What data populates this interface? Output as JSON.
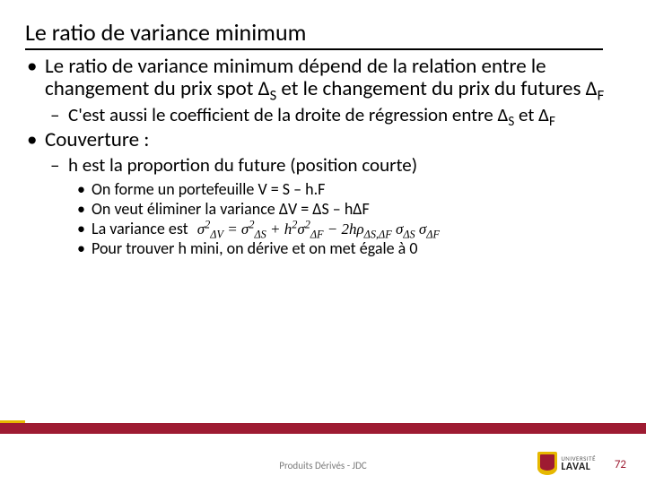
{
  "title": "Le ratio de variance minimum",
  "b1": "Le ratio de variance minimum dépend de la relation entre le changement du prix spot Δ",
  "b1_s1": "S",
  "b1_mid": " et le changement du prix du futures Δ",
  "b1_s2": "F",
  "b1a": "C'est aussi le coefficient de la droite de régression entre Δ",
  "b1a_s1": "S",
  "b1a_mid": " et Δ",
  "b1a_s2": "F",
  "b2": "Couverture :",
  "b2a": "h est la proportion du future (position courte)",
  "b2a1": "On forme un portefeuille V = S – h.F",
  "b2a2": "On veut éliminer la variance ΔV = ΔS – hΔF",
  "b2a3": "La variance est",
  "b2a3_formula": "σ²_ΔV = σ²_ΔS + h²σ²_ΔF − 2hρ_ΔS,ΔF σ_ΔS σ_ΔF",
  "b2a4": "Pour trouver h mini, on dérive et on met égale à 0",
  "footer": "Produits Dérivés - JDC",
  "page": "72",
  "logo_top": "UNIVERSITÉ",
  "logo_bottom": "LAVAL",
  "colors": {
    "accent": "#9e1b32",
    "gold": "#e6b800",
    "text": "#000000",
    "footer_text": "#7a7a7a"
  }
}
